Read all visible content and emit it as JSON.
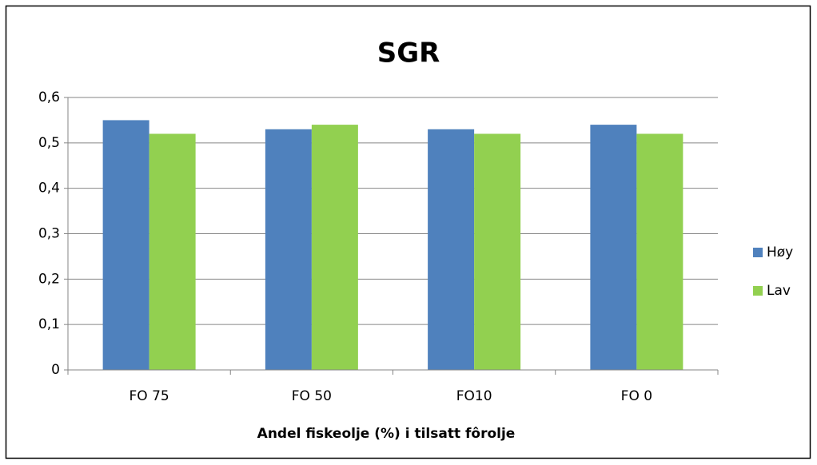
{
  "chart_data": {
    "type": "bar",
    "title": "SGR",
    "x_label": "Andel fiskeolje (%) i tilsatt fôrolje",
    "categories": [
      "FO 75",
      "FO 50",
      "FO10",
      "FO 0"
    ],
    "series": [
      {
        "name": "Høy",
        "color": "#4f81bd",
        "values": [
          0.55,
          0.53,
          0.53,
          0.54
        ]
      },
      {
        "name": "Lav",
        "color": "#92d050",
        "values": [
          0.52,
          0.54,
          0.52,
          0.52
        ]
      }
    ],
    "ylim": [
      0,
      0.6
    ],
    "yticks": [
      0,
      {
        "value": 0.1,
        "label": "0,1"
      },
      {
        "value": 0.2,
        "label": "0,2"
      },
      {
        "value": 0.3,
        "label": "0,3"
      },
      {
        "value": 0.4,
        "label": "0,4"
      },
      {
        "value": 0.5,
        "label": "0,5"
      },
      {
        "value": 0.6,
        "label": "0,6"
      }
    ],
    "grid": true,
    "legend": "right"
  }
}
